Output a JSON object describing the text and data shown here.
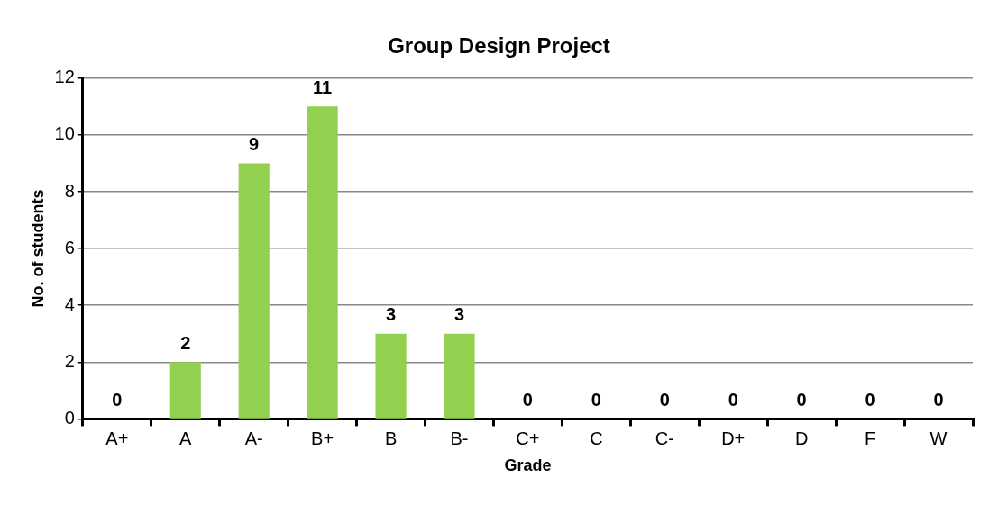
{
  "chart_data": {
    "type": "bar",
    "title": "Group Design Project",
    "xlabel": "Grade",
    "ylabel": "No. of students",
    "categories": [
      "A+",
      "A",
      "A-",
      "B+",
      "B",
      "B-",
      "C+",
      "C",
      "C-",
      "D+",
      "D",
      "F",
      "W"
    ],
    "values": [
      0,
      2,
      9,
      11,
      3,
      3,
      0,
      0,
      0,
      0,
      0,
      0,
      0
    ],
    "color": "#92d050",
    "ylim": [
      0,
      12
    ],
    "yticks": [
      0,
      2,
      4,
      6,
      8,
      10,
      12
    ],
    "grid": "y",
    "data_labels": true,
    "legend": false
  }
}
